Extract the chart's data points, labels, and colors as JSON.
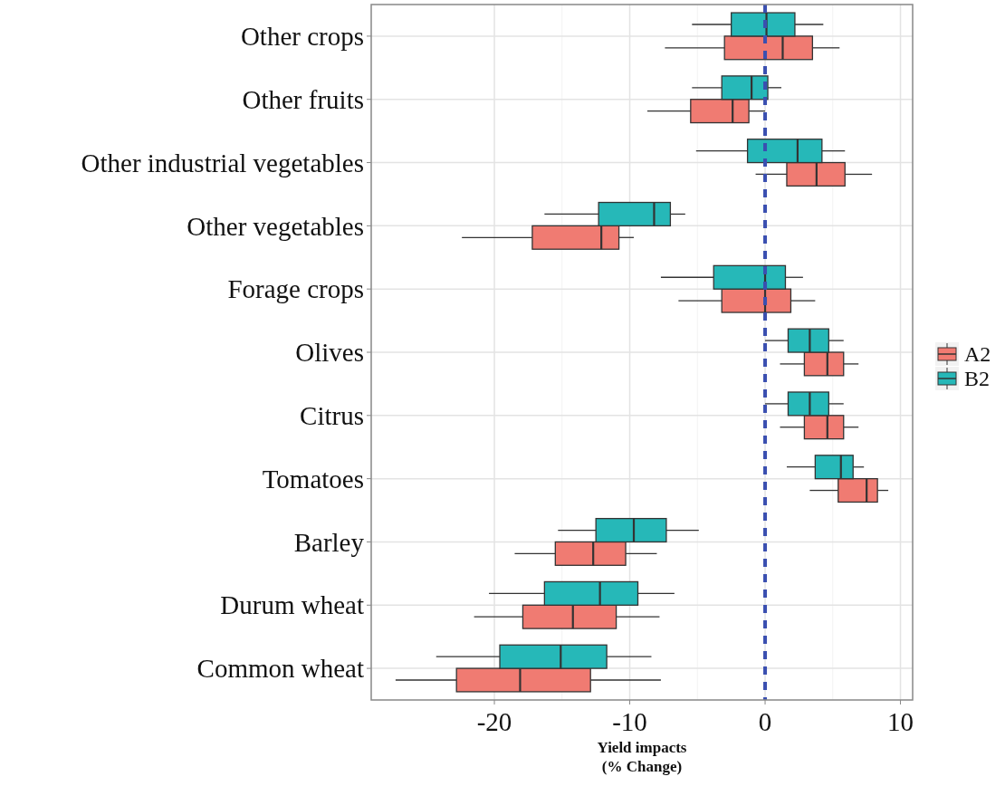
{
  "chart_data": {
    "type": "box",
    "orientation": "horizontal",
    "xlabel": "Yield impacts\n(% Change)",
    "categories": [
      "Other crops",
      "Other fruits",
      "Other industrial vegetables",
      "Other vegetables",
      "Forage crops",
      "Olives",
      "Citrus",
      "Tomatoes",
      "Barley",
      "Durum wheat",
      "Common wheat"
    ],
    "xlim": [
      -29.1,
      10.9
    ],
    "xticks": [
      -20,
      -10,
      0,
      10
    ],
    "grid": true,
    "legend": "right",
    "ref_lines": [
      {
        "axis": "x",
        "value": 0,
        "color": "#3a4fb0",
        "line_style": "dashed"
      }
    ],
    "series": [
      {
        "name": "A2",
        "color": "#f07b72",
        "boxes": [
          {
            "low": -7.4,
            "q1": -3.0,
            "median": 1.3,
            "q3": 3.5,
            "high": 5.5
          },
          {
            "low": -8.7,
            "q1": -5.5,
            "median": -2.4,
            "q3": -1.2,
            "high": 0
          },
          {
            "low": -0.7,
            "q1": 1.6,
            "median": 3.8,
            "q3": 5.9,
            "high": 7.9
          },
          {
            "low": -22.4,
            "q1": -17.2,
            "median": -12.1,
            "q3": -10.8,
            "high": -9.7
          },
          {
            "low": -6.4,
            "q1": -3.2,
            "median": 0,
            "q3": 1.9,
            "high": 3.7
          },
          {
            "low": 1.1,
            "q1": 2.9,
            "median": 4.6,
            "q3": 5.8,
            "high": 6.9
          },
          {
            "low": 1.1,
            "q1": 2.9,
            "median": 4.6,
            "q3": 5.8,
            "high": 6.9
          },
          {
            "low": 3.3,
            "q1": 5.4,
            "median": 7.5,
            "q3": 8.3,
            "high": 9.1
          },
          {
            "low": -18.5,
            "q1": -15.5,
            "median": -12.7,
            "q3": -10.3,
            "high": -8.0
          },
          {
            "low": -21.5,
            "q1": -17.9,
            "median": -14.2,
            "q3": -11.0,
            "high": -7.8
          },
          {
            "low": -27.3,
            "q1": -22.8,
            "median": -18.1,
            "q3": -12.9,
            "high": -7.7
          }
        ]
      },
      {
        "name": "B2",
        "color": "#26b8b8",
        "boxes": [
          {
            "low": -5.4,
            "q1": -2.5,
            "median": 0.1,
            "q3": 2.2,
            "high": 4.3
          },
          {
            "low": -5.4,
            "q1": -3.2,
            "median": -1.0,
            "q3": 0.2,
            "high": 1.2
          },
          {
            "low": -5.1,
            "q1": -1.3,
            "median": 2.4,
            "q3": 4.2,
            "high": 5.9
          },
          {
            "low": -16.3,
            "q1": -12.3,
            "median": -8.2,
            "q3": -7.0,
            "high": -5.9
          },
          {
            "low": -7.7,
            "q1": -3.8,
            "median": 0,
            "q3": 1.5,
            "high": 2.8
          },
          {
            "low": 0,
            "q1": 1.7,
            "median": 3.3,
            "q3": 4.7,
            "high": 5.8
          },
          {
            "low": 0,
            "q1": 1.7,
            "median": 3.3,
            "q3": 4.7,
            "high": 5.8
          },
          {
            "low": 1.6,
            "q1": 3.7,
            "median": 5.6,
            "q3": 6.5,
            "high": 7.3
          },
          {
            "low": -15.3,
            "q1": -12.5,
            "median": -9.7,
            "q3": -7.3,
            "high": -4.9
          },
          {
            "low": -20.4,
            "q1": -16.3,
            "median": -12.2,
            "q3": -9.4,
            "high": -6.7
          },
          {
            "low": -24.3,
            "q1": -19.6,
            "median": -15.1,
            "q3": -11.7,
            "high": -8.4
          }
        ]
      }
    ]
  }
}
